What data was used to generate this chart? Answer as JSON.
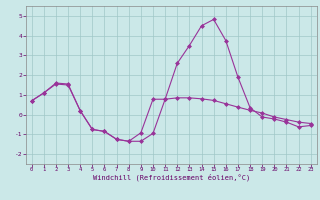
{
  "xlabel": "Windchill (Refroidissement éolien,°C)",
  "background_color": "#cbe8e8",
  "grid_color": "#a0c8c8",
  "line_color": "#993399",
  "spine_color": "#888888",
  "tick_label_color": "#660066",
  "xlim": [
    -0.5,
    23.5
  ],
  "ylim": [
    -2.5,
    5.5
  ],
  "xticks": [
    0,
    1,
    2,
    3,
    4,
    5,
    6,
    7,
    8,
    9,
    10,
    11,
    12,
    13,
    14,
    15,
    16,
    17,
    18,
    19,
    20,
    21,
    22,
    23
  ],
  "yticks": [
    -2,
    -1,
    0,
    1,
    2,
    3,
    4,
    5
  ],
  "line1_x": [
    0,
    1,
    2,
    3,
    4,
    5,
    6,
    7,
    8,
    9,
    10,
    11,
    12,
    13,
    14,
    15,
    16,
    17,
    18,
    19,
    20,
    21,
    22,
    23
  ],
  "line1_y": [
    0.7,
    1.1,
    1.6,
    1.55,
    0.2,
    -0.75,
    -0.85,
    -1.25,
    -1.35,
    -1.35,
    -0.95,
    0.78,
    0.85,
    0.85,
    0.8,
    0.72,
    0.55,
    0.38,
    0.22,
    0.08,
    -0.12,
    -0.25,
    -0.38,
    -0.45
  ],
  "line2_x": [
    0,
    1,
    2,
    3,
    4,
    5,
    6,
    7,
    8,
    9,
    10,
    11,
    12,
    13,
    14,
    15,
    16,
    17,
    18,
    19,
    20,
    21,
    22,
    23
  ],
  "line2_y": [
    0.7,
    1.1,
    1.55,
    1.5,
    0.2,
    -0.75,
    -0.85,
    -1.25,
    -1.35,
    -0.92,
    0.78,
    0.78,
    2.6,
    3.5,
    4.5,
    4.82,
    3.75,
    1.9,
    0.35,
    -0.12,
    -0.22,
    -0.38,
    -0.62,
    -0.55
  ],
  "marker": "D",
  "markersize": 2.0,
  "linewidth": 0.8
}
